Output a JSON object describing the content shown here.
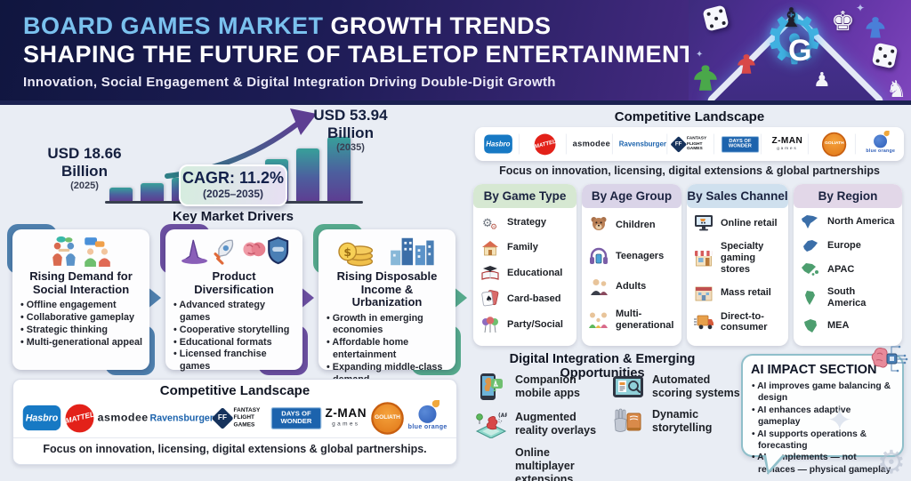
{
  "header": {
    "title_highlight": "BOARD GAMES MARKET",
    "title_rest": " GROWTH TRENDS",
    "title_line2": "SHAPING THE FUTURE OF TABLETOP ENTERTAINMENT",
    "subtitle": "Innovation, Social Engagement & Digital Integration Driving Double-Digit Growth",
    "accent_color": "#7ac1ee",
    "background_color": "#1d1c55"
  },
  "chart_data": {
    "type": "bar",
    "title": "Board games market size growth 2025-2035",
    "x": [
      "2025",
      "",
      "",
      "",
      "",
      "",
      "",
      "2035"
    ],
    "values": [
      18.66,
      21.8,
      25.2,
      28.9,
      33.1,
      38.6,
      45.8,
      53.94
    ],
    "unit": "USD Billion",
    "ylim": [
      0,
      56
    ],
    "grid": false,
    "bar_gradient": [
      "#37a09a",
      "#5d3e92"
    ],
    "start_label": {
      "amount": "USD 18.66",
      "unit": "Billion",
      "year": "(2025)"
    },
    "end_label": {
      "amount": "USD 53.94",
      "unit": "Billion",
      "year": "(2035)"
    },
    "cagr": {
      "label": "CAGR: 11.2%",
      "period": "(2025–2035)"
    }
  },
  "key_drivers": {
    "heading": "Key Market Drivers",
    "cards": [
      {
        "color": "#4e7fad",
        "title": "Rising Demand for Social Interaction",
        "bullets": [
          "Offline engagement",
          "Collaborative gameplay",
          "Strategic thinking",
          "Multi-generational appeal"
        ]
      },
      {
        "color": "#6b4fa0",
        "title": "Product Diversification",
        "bullets": [
          "Advanced strategy games",
          "Cooperative storytelling",
          "Educational formats",
          "Licensed franchise games"
        ]
      },
      {
        "color": "#55a98c",
        "title": "Rising Disposable Income & Urbanization",
        "bullets": [
          "Growth in emerging economies",
          "Affordable home entertainment",
          "Expanding middle-class demand"
        ]
      }
    ]
  },
  "brand_logos": [
    {
      "label": "Hasbro"
    },
    {
      "label": "MATTEL"
    },
    {
      "label": "asmodee"
    },
    {
      "label": "Ravensburger"
    },
    {
      "label": "FANTASY FLIGHT GAMES",
      "monogram": "FF"
    },
    {
      "label": "DAYS OF WONDER"
    },
    {
      "label": "Z-MAN",
      "sub": "games"
    },
    {
      "label": "GOLIATH"
    },
    {
      "label": "blue orange",
      "sub": "games"
    }
  ],
  "competitive_top": {
    "heading": "Competitive Landscape",
    "caption": "Focus on innovation, licensing, digital extensions & global partnerships"
  },
  "competitive_bottom": {
    "heading": "Competitive Landscape",
    "caption": "Focus on innovation, licensing, digital extensions & global partnerships."
  },
  "segments": {
    "game_type": {
      "title": "By Game Type",
      "tint": "#d6e8d2",
      "items": [
        {
          "icon": "gears-icon",
          "label": "Strategy"
        },
        {
          "icon": "house-icon",
          "label": "Family"
        },
        {
          "icon": "education-icon",
          "label": "Educational"
        },
        {
          "icon": "cards-icon",
          "label": "Card-based"
        },
        {
          "icon": "balloons-icon",
          "label": "Party/Social"
        }
      ]
    },
    "age_group": {
      "title": "By Age Group",
      "tint": "#dad4e8",
      "items": [
        {
          "icon": "teddy-bear-icon",
          "label": "Children"
        },
        {
          "icon": "headphones-icon",
          "label": "Teenagers"
        },
        {
          "icon": "adults-icon",
          "label": "Adults"
        },
        {
          "icon": "family-icon",
          "label": "Multi-generational"
        }
      ]
    },
    "sales_channel": {
      "title": "By Sales Channel",
      "tint": "#cfe0ee",
      "items": [
        {
          "icon": "online-retail-icon",
          "label": "Online retail"
        },
        {
          "icon": "storefront-icon",
          "label": "Specialty gaming stores"
        },
        {
          "icon": "mass-retail-icon",
          "label": "Mass retail"
        },
        {
          "icon": "delivery-truck-icon",
          "label": "Direct-to-consumer"
        }
      ]
    },
    "region": {
      "title": "By Region",
      "tint": "#e2d7e8",
      "items": [
        {
          "icon": "north-america-map-icon",
          "label": "North America",
          "color": "#3b6ea8"
        },
        {
          "icon": "europe-map-icon",
          "label": "Europe",
          "color": "#3b6ea8"
        },
        {
          "icon": "apac-map-icon",
          "label": "APAC",
          "color": "#4d9e6f"
        },
        {
          "icon": "south-america-map-icon",
          "label": "South America",
          "color": "#4d9e6f"
        },
        {
          "icon": "mea-map-icon",
          "label": "MEA",
          "color": "#4d9e6f"
        }
      ]
    }
  },
  "digital": {
    "heading": "Digital Integration & Emerging Opportunities",
    "items_left": [
      {
        "icon": "companion-app-icon",
        "label": "Companion mobile apps"
      },
      {
        "icon": "ar-overlay-icon",
        "label": "Augmented reality overlays"
      },
      {
        "icon": "",
        "label": "Online multiplayer extensions"
      }
    ],
    "items_right": [
      {
        "icon": "automated-scoring-icon",
        "label": "Automated scoring systems"
      },
      {
        "icon": "dynamic-storytelling-icon",
        "label": "Dynamic storytelling"
      }
    ]
  },
  "ai_impact": {
    "heading": "AI IMPACT SECTION",
    "bullets": [
      "AI improves game balancing & design",
      "AI enhances adaptive gameplay",
      "AI supports operations & forecasting",
      "AI complements — not replaces — physical gameplay"
    ]
  }
}
